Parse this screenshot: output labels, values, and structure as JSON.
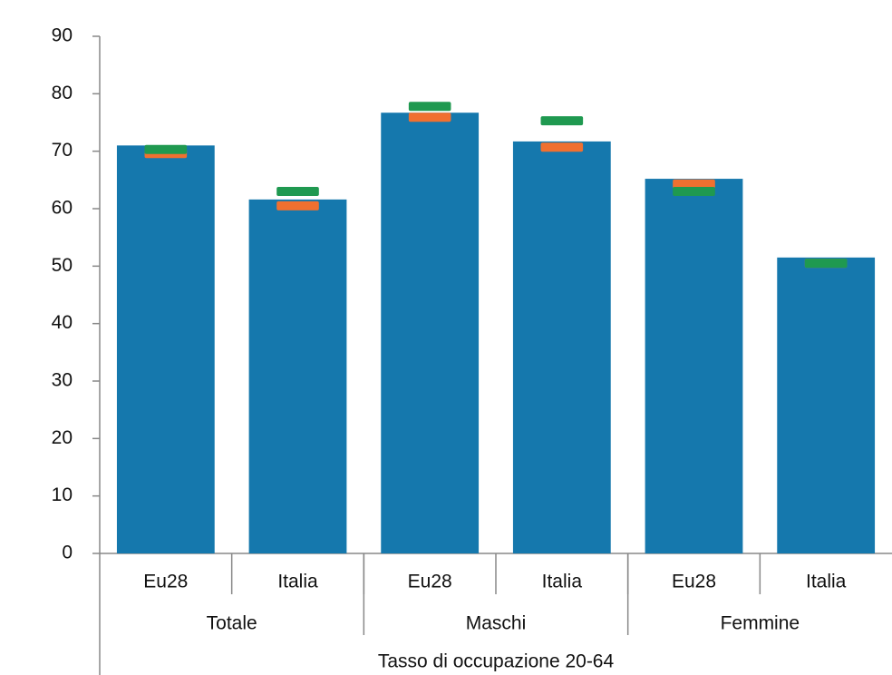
{
  "chart_data": {
    "type": "bar",
    "x_label": "Tasso di occupazione 20-64",
    "categories": [
      "Eu28",
      "Italia",
      "Eu28",
      "Italia",
      "Eu28",
      "Italia"
    ],
    "groups": [
      "Totale",
      "Maschi",
      "Femmine"
    ],
    "series": [
      {
        "type": "bar",
        "color": "#1578ad",
        "values": [
          71.0,
          61.6,
          76.7,
          71.7,
          65.2,
          51.5
        ]
      },
      {
        "type": "marker",
        "color": "#f07030",
        "values": [
          69.6,
          60.5,
          75.9,
          70.7,
          64.3,
          50.5
        ]
      },
      {
        "type": "marker",
        "color": "#1f9950",
        "values": [
          70.3,
          63.0,
          77.8,
          75.3,
          63.0,
          50.5
        ]
      }
    ],
    "ylim": [
      0,
      90
    ],
    "yticks": [
      0,
      10,
      20,
      30,
      40,
      50,
      60,
      70,
      80,
      90
    ]
  }
}
